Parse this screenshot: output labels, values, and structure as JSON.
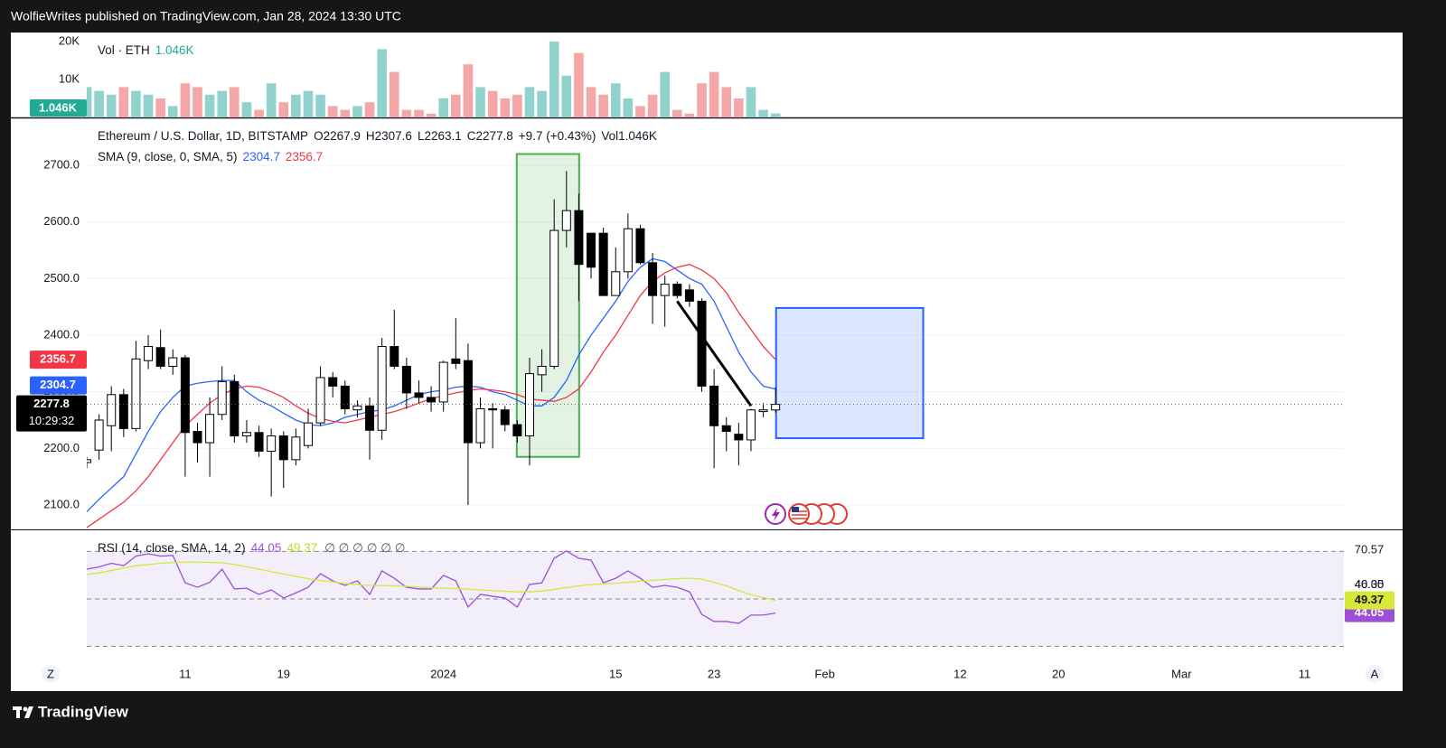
{
  "header": {
    "published": "WolfieWrites published on TradingView.com, Jan 28, 2024 13:30 UTC"
  },
  "footer": {
    "brand": "TradingView"
  },
  "buttons": {
    "left": "Z",
    "right": "A"
  },
  "chart_data": [
    {
      "type": "bar",
      "legend": "Vol · ETH",
      "up_color": "#92d2cc",
      "down_color": "#f5a6a6",
      "values": [
        8000,
        7000,
        6000,
        8000,
        7000,
        6000,
        5000,
        3000,
        9000,
        8000,
        6000,
        7000,
        8000,
        4000,
        2000,
        9000,
        4000,
        6000,
        7000,
        6000,
        3000,
        2000,
        3000,
        4000,
        18000,
        12000,
        2000,
        2000,
        1000,
        5000,
        6000,
        14000,
        8000,
        7000,
        5000,
        6000,
        8000,
        7000,
        20000,
        11000,
        17000,
        8000,
        6000,
        9000,
        5000,
        3000,
        6000,
        12000,
        2000,
        1000,
        9000,
        12000,
        8000,
        5000,
        8000,
        2000,
        1046
      ],
      "value_labels": [
        null,
        null,
        null,
        null,
        null,
        null,
        null,
        null,
        null,
        null,
        null,
        null,
        null,
        null,
        null,
        null,
        null,
        null,
        null,
        null,
        null,
        null,
        null,
        null,
        null,
        null,
        null,
        null,
        null,
        null,
        null,
        null,
        null,
        null,
        null,
        null,
        null,
        null,
        null,
        null,
        null,
        null,
        null,
        null,
        null,
        null,
        null,
        null,
        null,
        null,
        null,
        null,
        null,
        null,
        null,
        null,
        "1.046K"
      ],
      "ylim": [
        0,
        22380
      ],
      "yticks": [
        {
          "value": 10000,
          "label": "10K"
        },
        {
          "value": 20000,
          "label": "20K"
        }
      ]
    },
    {
      "type": "candlestick",
      "title": "Ethereum / U.S. Dollar, 1D, BITSTAMP",
      "ohlc_labels": [
        "O",
        "H",
        "L",
        "C"
      ],
      "change": "+9.7 (+0.43%)",
      "volume_label": "Vol",
      "countdown": "10:29:32",
      "up_color": "#ffffff",
      "down_color": "#000000",
      "open": [
        2175,
        2197,
        2240,
        2295,
        2235,
        2355,
        2378,
        2345,
        2360,
        2230,
        2210,
        2260,
        2318,
        2222,
        2228,
        2195,
        2222,
        2180,
        2205,
        2245,
        2325,
        2310,
        2268,
        2275,
        2232,
        2380,
        2345,
        2298,
        2290,
        2282,
        2358,
        2355,
        2210,
        2270,
        2268,
        2242,
        2222,
        2330,
        2345,
        2585,
        2620,
        2580,
        2580,
        2470,
        2512,
        2588,
        2528,
        2470,
        2490,
        2480,
        2460,
        2310,
        2240,
        2225,
        2215,
        2265,
        2267.9
      ],
      "high": [
        2185,
        2260,
        2310,
        2305,
        2390,
        2400,
        2410,
        2375,
        2365,
        2245,
        2290,
        2345,
        2330,
        2250,
        2240,
        2235,
        2230,
        2235,
        2270,
        2345,
        2335,
        2320,
        2285,
        2290,
        2395,
        2445,
        2360,
        2320,
        2310,
        2355,
        2430,
        2385,
        2290,
        2280,
        2275,
        2250,
        2360,
        2375,
        2640,
        2690,
        2650,
        2580,
        2590,
        2555,
        2615,
        2595,
        2545,
        2505,
        2495,
        2490,
        2465,
        2340,
        2255,
        2245,
        2270,
        2280,
        2307.6
      ],
      "low": [
        2165,
        2180,
        2195,
        2220,
        2230,
        2340,
        2340,
        2330,
        2150,
        2175,
        2150,
        2250,
        2210,
        2210,
        2185,
        2115,
        2130,
        2170,
        2200,
        2240,
        2290,
        2260,
        2255,
        2180,
        2215,
        2340,
        2270,
        2280,
        2265,
        2265,
        2340,
        2100,
        2200,
        2200,
        2230,
        2210,
        2170,
        2300,
        2340,
        2555,
        2460,
        2500,
        2470,
        2470,
        2500,
        2525,
        2420,
        2415,
        2465,
        2450,
        2300,
        2165,
        2195,
        2170,
        2195,
        2255,
        2263.1
      ],
      "close": [
        2180,
        2250,
        2295,
        2235,
        2358,
        2380,
        2345,
        2360,
        2228,
        2210,
        2260,
        2318,
        2222,
        2228,
        2195,
        2222,
        2180,
        2220,
        2245,
        2325,
        2310,
        2270,
        2275,
        2232,
        2380,
        2345,
        2298,
        2290,
        2282,
        2352,
        2350,
        2210,
        2270,
        2268,
        2242,
        2222,
        2332,
        2345,
        2585,
        2620,
        2525,
        2520,
        2470,
        2512,
        2588,
        2528,
        2470,
        2490,
        2470,
        2460,
        2310,
        2240,
        2230,
        2215,
        2268,
        2268,
        2277.8
      ],
      "indicator": {
        "name": "SMA (9, close, 0, SMA, 5)",
        "series": [
          {
            "color": "#2962ff",
            "values": [
              2088,
              2110,
              2130,
              2150,
              2190,
              2230,
              2265,
              2290,
              2310,
              2315,
              2318,
              2320,
              2320,
              2300,
              2285,
              2275,
              2262,
              2250,
              2242,
              2240,
              2245,
              2255,
              2260,
              2265,
              2268,
              2275,
              2285,
              2295,
              2300,
              2303,
              2308,
              2310,
              2308,
              2300,
              2295,
              2285,
              2275,
              2275,
              2290,
              2320,
              2365,
              2400,
              2430,
              2460,
              2495,
              2520,
              2535,
              2530,
              2515,
              2500,
              2490,
              2460,
              2415,
              2370,
              2335,
              2310,
              2304.7
            ]
          },
          {
            "color": "#f23645",
            "values": [
              2060,
              2075,
              2090,
              2105,
              2125,
              2150,
              2180,
              2210,
              2240,
              2260,
              2280,
              2295,
              2305,
              2310,
              2308,
              2300,
              2290,
              2275,
              2262,
              2253,
              2248,
              2245,
              2250,
              2255,
              2260,
              2265,
              2272,
              2280,
              2288,
              2293,
              2298,
              2302,
              2305,
              2303,
              2300,
              2295,
              2287,
              2285,
              2283,
              2290,
              2305,
              2335,
              2370,
              2400,
              2435,
              2470,
              2495,
              2510,
              2520,
              2525,
              2515,
              2500,
              2475,
              2440,
              2410,
              2380,
              2356.7
            ]
          }
        ]
      },
      "drawings": {
        "rectangles": [
          {
            "color": "#4caf50",
            "x": [
              34.96,
              40.03
            ],
            "y": [
              2185,
              2720
            ]
          },
          {
            "color": "#2962ff",
            "x": [
              56.04,
              68.0
            ],
            "y": [
              2218,
              2448
            ]
          }
        ],
        "trendline": {
          "color": "#000000",
          "x": [
            48.0,
            54.0
          ],
          "y": [
            2460,
            2275
          ]
        }
      },
      "xlim": [
        0,
        102.2
      ],
      "xticks": [
        {
          "value": 8,
          "label": "11"
        },
        {
          "value": 16,
          "label": "19"
        },
        {
          "value": 29,
          "label": "2024"
        },
        {
          "value": 43,
          "label": "15"
        },
        {
          "value": 51,
          "label": "23"
        },
        {
          "value": 60,
          "label": "Feb"
        },
        {
          "value": 71,
          "label": "12"
        },
        {
          "value": 79,
          "label": "20"
        },
        {
          "value": 89,
          "label": "Mar"
        },
        {
          "value": 99,
          "label": "11"
        }
      ],
      "ylim": [
        2058.5,
        2783
      ],
      "yticks": [
        {
          "value": 2100,
          "label": "2100.0"
        },
        {
          "value": 2200,
          "label": "2200.0"
        },
        {
          "value": 2300,
          "label": "2300.0"
        },
        {
          "value": 2400,
          "label": "2400.0"
        },
        {
          "value": 2500,
          "label": "2500.0"
        },
        {
          "value": 2600,
          "label": "2600.0"
        },
        {
          "value": 2700,
          "label": "2700.0"
        }
      ],
      "grid": true
    },
    {
      "type": "line",
      "indicator": "RSI (14, close, SMA, 14, 2)",
      "plots_hidden": "∅ ∅ ∅ ∅ ∅ ∅",
      "bands": [
        30,
        50,
        70
      ],
      "series": [
        {
          "color": "#9c4fd6",
          "values": [
            62.5,
            63.5,
            65,
            64,
            68,
            69,
            68,
            68.3,
            56.8,
            54.9,
            57,
            62.5,
            54.2,
            54.5,
            51.9,
            53.8,
            50.4,
            52.5,
            54.9,
            60.6,
            57.6,
            55.7,
            57.6,
            51.9,
            61.8,
            58.7,
            54.9,
            54.2,
            54.2,
            59.9,
            57.6,
            46.6,
            51.9,
            51.1,
            50.4,
            46.6,
            56.1,
            56.8,
            67.1,
            70.2,
            67.1,
            66.3,
            56.8,
            58.7,
            61.8,
            58.7,
            54.9,
            55.7,
            54.9,
            53,
            43.5,
            40.5,
            40.5,
            39.7,
            43.2,
            43.2,
            44.05
          ]
        },
        {
          "color": "#d7e83a",
          "values": [
            60.3,
            61,
            62,
            63,
            64,
            64.5,
            65,
            65.3,
            65.5,
            65.5,
            65.4,
            65.2,
            64.5,
            63.5,
            62.5,
            61.5,
            60.5,
            59.5,
            58.5,
            57.8,
            57.2,
            56.5,
            56,
            55.7,
            55.6,
            55.5,
            55.3,
            55,
            54.7,
            54.5,
            54.4,
            54.1,
            53.8,
            53.5,
            53.2,
            53,
            53,
            53.3,
            54,
            54.8,
            55.5,
            56,
            56.3,
            56.6,
            57,
            57.4,
            57.8,
            58.2,
            58.5,
            58.7,
            58.3,
            57,
            55.5,
            53.5,
            51.8,
            50.5,
            49.37
          ]
        }
      ],
      "ylim": [
        24.5,
        78.9
      ],
      "yticks": [
        70.57,
        46.35,
        {
          "value": 40,
          "label": "40.00"
        }
      ]
    }
  ]
}
